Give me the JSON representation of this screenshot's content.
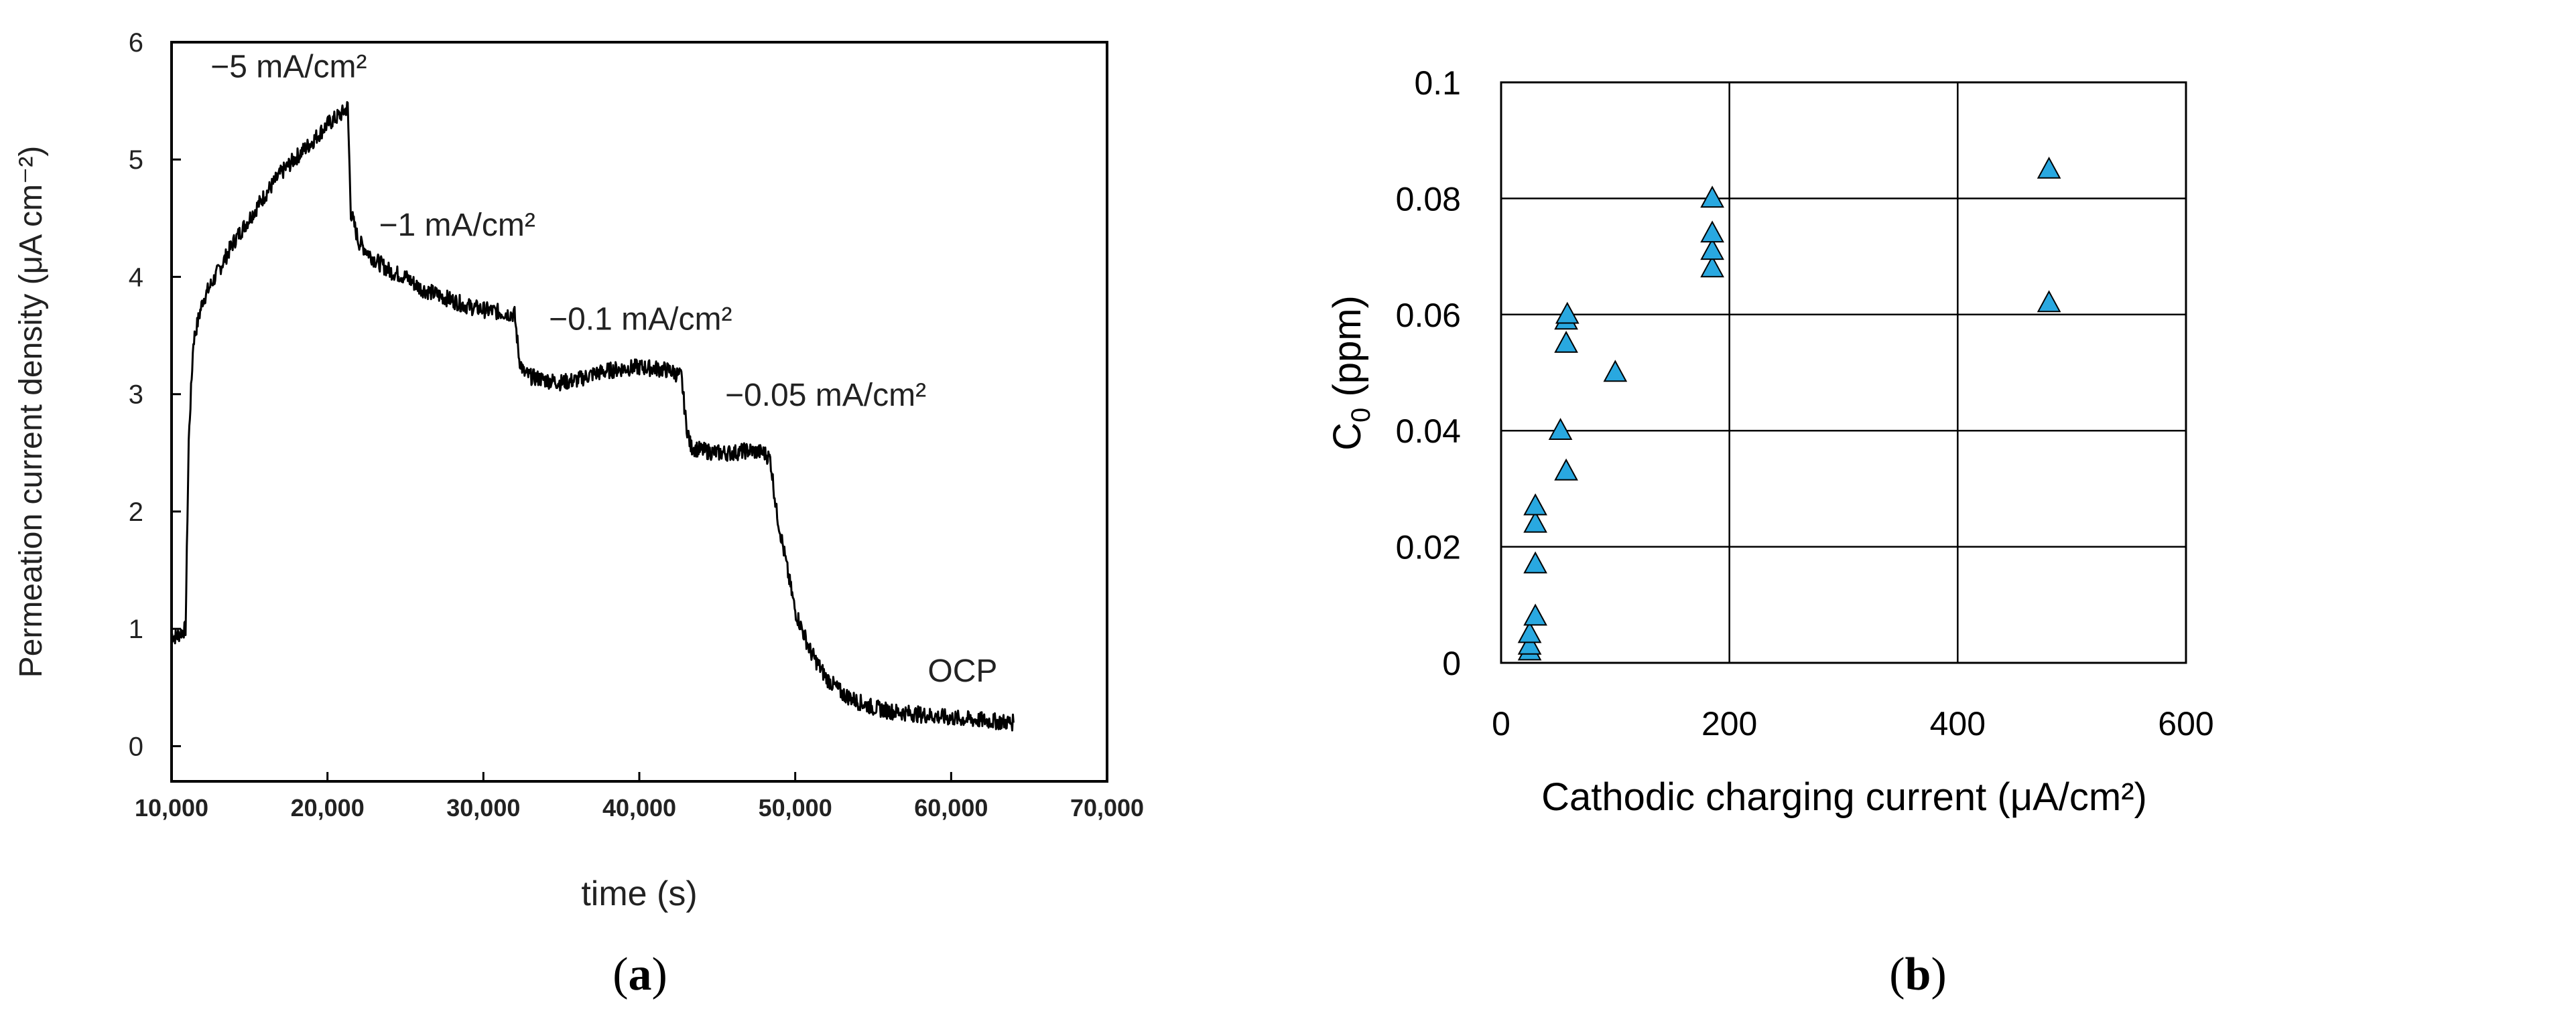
{
  "chart_data": [
    {
      "type": "line",
      "panel_label": "a",
      "title": "",
      "xlabel": "time (s)",
      "ylabel": "Permeation current density (μA cm⁻²)",
      "xlim": [
        10000,
        70000
      ],
      "ylim": [
        -0.3,
        6
      ],
      "xticks": [
        "10,000",
        "20,000",
        "30,000",
        "40,000",
        "50,000",
        "60,000",
        "70,000"
      ],
      "xtick_values": [
        10000,
        20000,
        30000,
        40000,
        50000,
        60000,
        70000
      ],
      "yticks": [
        "0",
        "1",
        "2",
        "3",
        "4",
        "5",
        "6"
      ],
      "ytick_values": [
        0,
        1,
        2,
        3,
        4,
        5,
        6
      ],
      "grid": false,
      "series": [
        {
          "name": "permeation current",
          "color": "#000000",
          "x": [
            10000,
            10300,
            10600,
            10900,
            11100,
            11400,
            12000,
            13000,
            14000,
            15000,
            16000,
            17000,
            18000,
            19000,
            20000,
            21000,
            21300,
            21500,
            22000,
            23000,
            24000,
            25000,
            26000,
            27000,
            28000,
            29000,
            30000,
            31000,
            32000,
            32300,
            32600,
            33000,
            34000,
            35000,
            36000,
            37000,
            38000,
            39000,
            40000,
            41000,
            42000,
            42700,
            43000,
            43300,
            44000,
            45000,
            46000,
            47000,
            48000,
            48400,
            48800,
            49500,
            50000,
            51000,
            52000,
            53000,
            54000,
            55000,
            56000,
            58000,
            60000,
            62000,
            64000
          ],
          "y": [
            0.95,
            0.93,
            0.97,
            1.0,
            2.6,
            3.45,
            3.8,
            4.05,
            4.3,
            4.5,
            4.7,
            4.88,
            5.02,
            5.15,
            5.3,
            5.4,
            5.45,
            4.55,
            4.3,
            4.15,
            4.05,
            4.0,
            3.9,
            3.85,
            3.8,
            3.75,
            3.72,
            3.7,
            3.68,
            3.3,
            3.18,
            3.15,
            3.12,
            3.1,
            3.12,
            3.17,
            3.2,
            3.22,
            3.23,
            3.22,
            3.2,
            3.15,
            2.75,
            2.55,
            2.52,
            2.5,
            2.5,
            2.52,
            2.5,
            2.45,
            2.0,
            1.5,
            1.15,
            0.8,
            0.58,
            0.45,
            0.38,
            0.33,
            0.3,
            0.27,
            0.24,
            0.22,
            0.2
          ]
        }
      ],
      "annotations": [
        {
          "text": "−5 mA/cm²",
          "x": 12500,
          "y": 5.7
        },
        {
          "text": "−1 mA/cm²",
          "x": 23300,
          "y": 4.35
        },
        {
          "text": "−0.1 mA/cm²",
          "x": 34200,
          "y": 3.55
        },
        {
          "text": "−0.05 mA/cm²",
          "x": 45500,
          "y": 2.9
        },
        {
          "text": "OCP",
          "x": 58500,
          "y": 0.55
        }
      ]
    },
    {
      "type": "scatter",
      "panel_label": "b",
      "title": "",
      "xlabel": "Cathodic charging current (μA/cm²)",
      "ylabel": "C0 (ppm)",
      "ylabel_main": "C",
      "ylabel_sub": "0",
      "ylabel_unit": " (ppm)",
      "xlim": [
        0,
        600
      ],
      "ylim": [
        0,
        0.1
      ],
      "xticks": [
        "0",
        "200",
        "400",
        "600"
      ],
      "xtick_values": [
        0,
        200,
        400,
        600
      ],
      "yticks": [
        "0",
        "0.02",
        "0.04",
        "0.06",
        "0.08",
        "0.1"
      ],
      "ytick_values": [
        0,
        0.02,
        0.04,
        0.06,
        0.08,
        0.1
      ],
      "grid": true,
      "marker": "triangle",
      "marker_color": "#29a8e0",
      "points": [
        {
          "x": 25,
          "y": 0.002
        },
        {
          "x": 25,
          "y": 0.003
        },
        {
          "x": 25,
          "y": 0.005
        },
        {
          "x": 30,
          "y": 0.008
        },
        {
          "x": 30,
          "y": 0.017
        },
        {
          "x": 30,
          "y": 0.024
        },
        {
          "x": 30,
          "y": 0.027
        },
        {
          "x": 52,
          "y": 0.04
        },
        {
          "x": 57,
          "y": 0.033
        },
        {
          "x": 57,
          "y": 0.055
        },
        {
          "x": 57,
          "y": 0.059
        },
        {
          "x": 58,
          "y": 0.06
        },
        {
          "x": 100,
          "y": 0.05
        },
        {
          "x": 185,
          "y": 0.068
        },
        {
          "x": 185,
          "y": 0.071
        },
        {
          "x": 185,
          "y": 0.074
        },
        {
          "x": 185,
          "y": 0.08
        },
        {
          "x": 480,
          "y": 0.062
        },
        {
          "x": 480,
          "y": 0.085
        }
      ]
    }
  ]
}
